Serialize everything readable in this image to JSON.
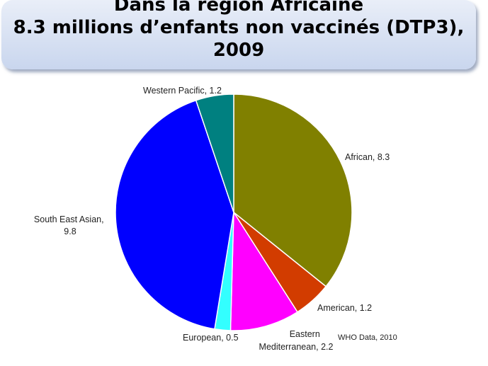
{
  "title": {
    "line1": "Dans la région Africaine",
    "line2": "8.3  millions d’enfants non vaccinés (DTP3),",
    "line3": "2009"
  },
  "source": "WHO Data, 2010",
  "chart_data": {
    "type": "pie",
    "title": "Dans la région Africaine 8.3  millions d’enfants non vaccinés (DTP3), 2009",
    "start_angle": "12 o'clock",
    "direction": "clockwise",
    "slices": [
      {
        "key": "african",
        "label": "African, 8.3",
        "value": 8.3,
        "color": "#808000"
      },
      {
        "key": "american",
        "label": "American, 1.2",
        "value": 1.2,
        "color": "#d23c00"
      },
      {
        "key": "eastern_med",
        "label": "Eastern Mediterranean, 2.2",
        "label_lines": [
          "Eastern",
          "Mediterranean, 2.2"
        ],
        "value": 2.2,
        "color": "#ff00ff"
      },
      {
        "key": "european",
        "label": "European, 0.5",
        "value": 0.5,
        "color": "#33ffff"
      },
      {
        "key": "south_east_asian",
        "label": "South East Asian, 9.8",
        "label_lines": [
          "South East Asian,",
          "9.8"
        ],
        "value": 9.8,
        "color": "#0000ff"
      },
      {
        "key": "western_pacific",
        "label": "Western Pacific, 1.2",
        "value": 1.2,
        "color": "#008080"
      }
    ]
  }
}
